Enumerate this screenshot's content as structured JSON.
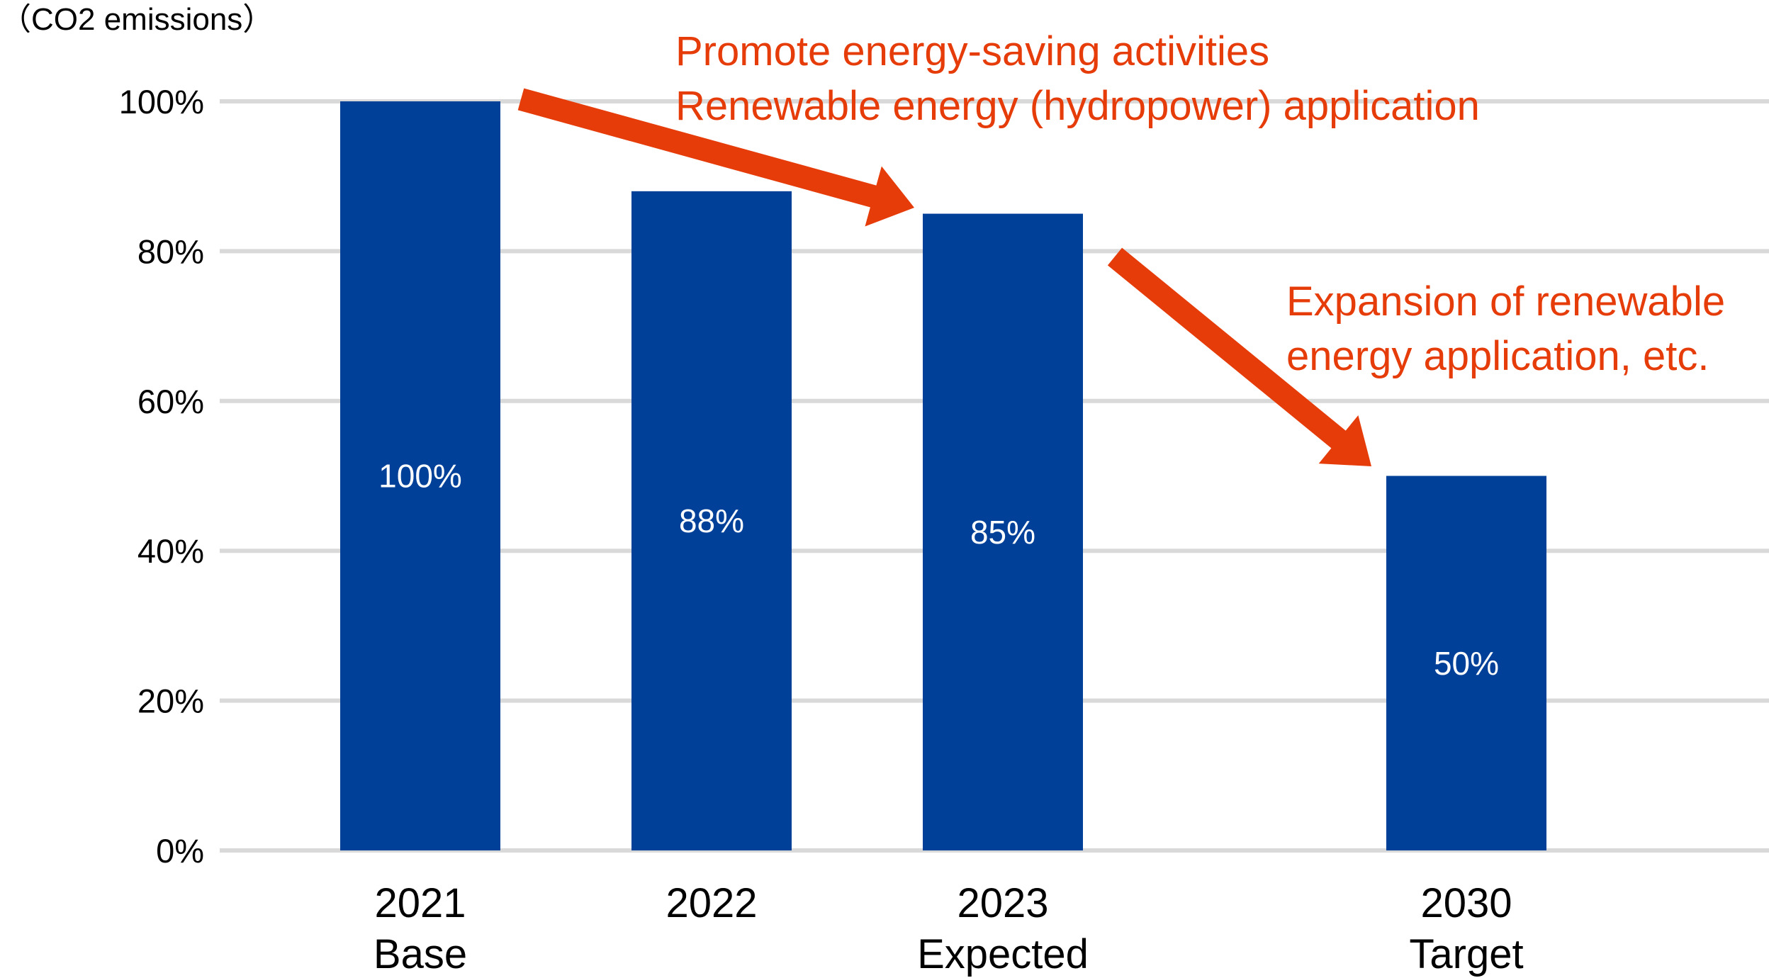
{
  "chart_data": {
    "type": "bar",
    "ylabel": "（CO2 emissions）",
    "ylim": [
      0,
      100
    ],
    "yticks": [
      "0%",
      "20%",
      "40%",
      "60%",
      "80%",
      "100%"
    ],
    "ytick_values": [
      0,
      20,
      40,
      60,
      80,
      100
    ],
    "grid": true,
    "categories": [
      {
        "year": "2021",
        "sub": "Base"
      },
      {
        "year": "2022",
        "sub": ""
      },
      {
        "year": "2023",
        "sub": "Expected"
      },
      {
        "year": "2030",
        "sub": "Target"
      }
    ],
    "values": [
      100,
      88,
      85,
      50
    ],
    "data_labels": [
      "100%",
      "88%",
      "85%",
      "50%"
    ],
    "annotations": [
      {
        "lines": [
          "Promote energy-saving activities",
          "Renewable energy (hydropower) application"
        ]
      },
      {
        "lines": [
          "Expansion of renewable",
          "energy application, etc."
        ]
      }
    ],
    "colors": {
      "bar": "#004098",
      "bar_label": "#ffffff",
      "grid": "#d9d9d9",
      "arrow": "#e63c0a",
      "annotation": "#e63c0a",
      "axis_text": "#000000"
    }
  }
}
